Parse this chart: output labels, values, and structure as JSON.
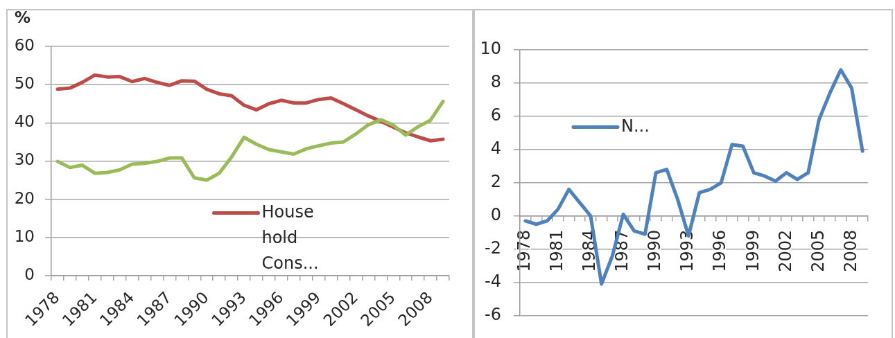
{
  "chart_data": [
    {
      "type": "line",
      "ylabel": "%",
      "categories": [
        "1978",
        null,
        null,
        "1981",
        null,
        null,
        "1984",
        null,
        null,
        "1987",
        null,
        null,
        "1990",
        null,
        null,
        "1993",
        null,
        null,
        "1996",
        null,
        null,
        "1999",
        null,
        null,
        "2002",
        null,
        null,
        "2005",
        null,
        null,
        "2008",
        null
      ],
      "series": [
        {
          "name": "House hold Cons...",
          "color": "#be4b48",
          "values": [
            48.8,
            49.1,
            50.6,
            52.5,
            52.0,
            52.1,
            50.8,
            51.6,
            50.6,
            49.8,
            51.0,
            50.9,
            48.8,
            47.6,
            47.1,
            44.6,
            43.4,
            45.0,
            45.9,
            45.2,
            45.2,
            46.1,
            46.5,
            45.0,
            43.4,
            41.8,
            40.4,
            38.9,
            37.4,
            36.3,
            35.3,
            35.7
          ]
        },
        {
          "color": "#9bbb59",
          "values": [
            29.9,
            28.3,
            28.9,
            26.8,
            27.0,
            27.7,
            29.2,
            29.4,
            29.9,
            30.8,
            30.8,
            25.6,
            25.0,
            26.8,
            31.1,
            36.2,
            34.4,
            33.0,
            32.4,
            31.8,
            33.2,
            34.0,
            34.7,
            35.0,
            37.1,
            39.5,
            40.8,
            39.4,
            36.8,
            39.0,
            40.7,
            45.6
          ]
        }
      ],
      "ylim": [
        0,
        60
      ],
      "yticks": [
        0,
        10,
        20,
        30,
        40,
        50,
        60
      ],
      "grid": "y",
      "legend": "bottom"
    },
    {
      "type": "line",
      "categories": [
        "1978",
        null,
        null,
        "1981",
        null,
        null,
        "1984",
        null,
        null,
        "1987",
        null,
        null,
        "1990",
        null,
        null,
        "1993",
        null,
        null,
        "1996",
        null,
        null,
        "1999",
        null,
        null,
        "2002",
        null,
        null,
        "2005",
        null,
        null,
        "2008",
        null
      ],
      "series": [
        {
          "name": "N...",
          "color": "#4f81bd",
          "values": [
            -0.3,
            -0.5,
            -0.3,
            0.4,
            1.6,
            0.8,
            0.0,
            -4.1,
            -2.4,
            0.1,
            -0.9,
            -1.1,
            2.6,
            2.8,
            1.0,
            -1.2,
            1.4,
            1.6,
            2.0,
            4.3,
            4.2,
            2.6,
            2.4,
            2.1,
            2.6,
            2.2,
            2.6,
            5.8,
            7.4,
            8.8,
            7.7,
            3.9
          ]
        }
      ],
      "ylim": [
        -6,
        10
      ],
      "yticks": [
        -6,
        -4,
        -2,
        0,
        2,
        4,
        6,
        8,
        10
      ],
      "grid": "y",
      "legend": "top left"
    }
  ]
}
